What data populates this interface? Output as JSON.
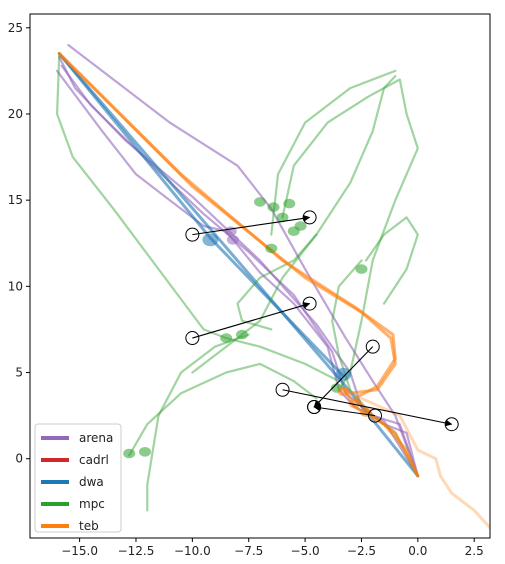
{
  "chart_data": {
    "type": "line",
    "title": "",
    "xlabel": "",
    "ylabel": "",
    "xlim": [
      -17.2,
      3.2
    ],
    "ylim": [
      -4.6,
      25.8
    ],
    "x_ticks": [
      -15.0,
      -12.5,
      -10.0,
      -7.5,
      -5.0,
      -2.5,
      0.0,
      2.5
    ],
    "x_tick_labels": [
      "−15.0",
      "−12.5",
      "−10.0",
      "−7.5",
      "−5.0",
      "−2.5",
      "0.0",
      "2.5"
    ],
    "y_ticks": [
      0,
      5,
      10,
      15,
      20,
      25
    ],
    "y_tick_labels": [
      "0",
      "5",
      "10",
      "15",
      "20",
      "25"
    ],
    "grid": false,
    "legend_position": "lower-left",
    "series": [
      {
        "name": "arena",
        "color": "#9467bd",
        "paths": [
          [
            [
              -15.9,
              23.3
            ],
            [
              -15.2,
              21.5
            ],
            [
              -13.0,
              18.5
            ],
            [
              -10.0,
              15.2
            ],
            [
              -7.0,
              11.5
            ],
            [
              -4.5,
              7.8
            ],
            [
              -3.0,
              5.0
            ],
            [
              -2.5,
              3.0
            ],
            [
              -1.5,
              2.0
            ],
            [
              -0.5,
              1.5
            ],
            [
              0.0,
              -1.0
            ]
          ],
          [
            [
              -15.8,
              22.8
            ],
            [
              -14.5,
              20.5
            ],
            [
              -12.0,
              17.3
            ],
            [
              -9.5,
              14.2
            ],
            [
              -7.5,
              12.0
            ],
            [
              -5.5,
              9.5
            ],
            [
              -3.8,
              6.2
            ],
            [
              -3.2,
              3.8
            ],
            [
              -2.0,
              2.5
            ],
            [
              -0.8,
              2.0
            ],
            [
              0.0,
              -1.0
            ]
          ],
          [
            [
              -15.5,
              24.0
            ],
            [
              -13.5,
              22.0
            ],
            [
              -11.0,
              19.5
            ],
            [
              -8.0,
              17.0
            ],
            [
              -6.5,
              14.5
            ],
            [
              -5.0,
              11.0
            ],
            [
              -3.2,
              7.0
            ],
            [
              -2.0,
              4.5
            ],
            [
              -1.0,
              2.5
            ],
            [
              0.0,
              -1.0
            ]
          ],
          [
            [
              -16.0,
              22.5
            ],
            [
              -14.0,
              19.0
            ],
            [
              -12.5,
              16.5
            ],
            [
              -11.0,
              15.0
            ],
            [
              -9.5,
              13.5
            ],
            [
              -8.5,
              13.2
            ],
            [
              -7.0,
              10.8
            ],
            [
              -5.5,
              9.0
            ],
            [
              -4.0,
              6.5
            ],
            [
              -3.5,
              4.0
            ],
            [
              -2.8,
              3.0
            ],
            [
              -1.5,
              2.2
            ],
            [
              0.0,
              -1.0
            ]
          ]
        ],
        "blobs": [
          [
            -8.3,
            13.2
          ],
          [
            -8.2,
            12.7
          ]
        ]
      },
      {
        "name": "cadrl",
        "color": "#d62728",
        "paths": [],
        "blobs": []
      },
      {
        "name": "dwa",
        "color": "#1f77b4",
        "paths": [
          [
            [
              -15.9,
              23.5
            ],
            [
              -9.2,
              12.8
            ],
            [
              -3.3,
              4.8
            ]
          ],
          [
            [
              -15.9,
              23.5
            ],
            [
              -3.2,
              4.2
            ],
            [
              0.0,
              -1.0
            ]
          ]
        ],
        "blobs": [
          [
            -9.2,
            12.7
          ],
          [
            -3.3,
            4.9
          ]
        ]
      },
      {
        "name": "mpc",
        "color": "#2ca02c",
        "paths": [
          [
            [
              -15.9,
              23.5
            ],
            [
              -16.0,
              20.0
            ],
            [
              -15.3,
              17.5
            ],
            [
              -13.5,
              14.5
            ],
            [
              -11.5,
              11.0
            ],
            [
              -9.5,
              7.5
            ],
            [
              -8.5,
              7.0
            ],
            [
              -7.0,
              6.5
            ],
            [
              -5.0,
              5.5
            ],
            [
              -3.5,
              4.5
            ]
          ],
          [
            [
              -12.0,
              -3.0
            ],
            [
              -12.0,
              -1.5
            ],
            [
              -11.5,
              2.5
            ],
            [
              -10.5,
              5.0
            ],
            [
              -9.0,
              6.5
            ],
            [
              -7.5,
              7.2
            ]
          ],
          [
            [
              -10.0,
              5.0
            ],
            [
              -8.5,
              6.5
            ],
            [
              -7.0,
              8.0
            ],
            [
              -6.0,
              10.5
            ],
            [
              -4.5,
              13.0
            ],
            [
              -3.0,
              16.0
            ],
            [
              -2.0,
              19.0
            ],
            [
              -1.5,
              21.5
            ],
            [
              -1.0,
              22.2
            ]
          ],
          [
            [
              -12.8,
              0.2
            ],
            [
              -12.0,
              2.0
            ],
            [
              -10.5,
              3.8
            ],
            [
              -8.5,
              5.0
            ],
            [
              -7.0,
              5.5
            ],
            [
              -5.5,
              4.5
            ],
            [
              -4.5,
              3.5
            ]
          ],
          [
            [
              -6.5,
              13.0
            ],
            [
              -6.2,
              16.5
            ],
            [
              -5.0,
              19.5
            ],
            [
              -3.0,
              21.5
            ],
            [
              -1.0,
              22.5
            ]
          ],
          [
            [
              -6.0,
              14.0
            ],
            [
              -5.5,
              17.0
            ],
            [
              -4.0,
              19.5
            ],
            [
              -2.2,
              21.0
            ],
            [
              -0.8,
              22.0
            ],
            [
              -0.5,
              20.0
            ],
            [
              0.0,
              18.0
            ],
            [
              -1.0,
              15.0
            ],
            [
              -2.0,
              11.5
            ],
            [
              -2.5,
              8.0
            ],
            [
              -3.0,
              5.0
            ],
            [
              -3.5,
              4.0
            ]
          ],
          [
            [
              -4.5,
              13.0
            ],
            [
              -5.5,
              11.5
            ],
            [
              -7.0,
              10.5
            ],
            [
              -8.0,
              9.0
            ],
            [
              -7.8,
              8.0
            ],
            [
              -6.5,
              7.5
            ]
          ],
          [
            [
              -2.5,
              11.5
            ],
            [
              -3.5,
              10.0
            ],
            [
              -3.8,
              8.0
            ],
            [
              -3.5,
              6.0
            ],
            [
              -3.0,
              4.0
            ],
            [
              -2.0,
              2.5
            ],
            [
              -1.0,
              1.5
            ],
            [
              0.0,
              -1.0
            ]
          ],
          [
            [
              -2.3,
              11.5
            ],
            [
              -1.5,
              13.0
            ],
            [
              -0.5,
              14.0
            ],
            [
              0.0,
              13.0
            ],
            [
              -0.5,
              11.0
            ],
            [
              -1.5,
              9.0
            ]
          ]
        ],
        "blobs": [
          [
            -8.5,
            7.0
          ],
          [
            -7.8,
            7.2
          ],
          [
            -12.8,
            0.3
          ],
          [
            -12.1,
            0.4
          ],
          [
            -6.5,
            12.2
          ],
          [
            -2.5,
            11.0
          ],
          [
            -6.0,
            14.0
          ],
          [
            -5.5,
            13.2
          ],
          [
            -5.2,
            13.5
          ],
          [
            -7.0,
            14.9
          ],
          [
            -6.4,
            14.6
          ],
          [
            -5.7,
            14.8
          ],
          [
            -3.6,
            4.1
          ]
        ]
      },
      {
        "name": "teb",
        "color": "#ff7f0e",
        "paths": [
          [
            [
              -15.9,
              23.5
            ],
            [
              -10.0,
              15.8
            ],
            [
              -5.0,
              10.5
            ],
            [
              -2.5,
              8.5
            ],
            [
              -1.2,
              7.0
            ],
            [
              -1.0,
              5.5
            ],
            [
              -1.8,
              4.0
            ],
            [
              -3.0,
              3.8
            ],
            [
              -3.3,
              4.1
            ],
            [
              -2.8,
              3.0
            ],
            [
              -1.5,
              2.0
            ],
            [
              -0.5,
              0.5
            ],
            [
              0.0,
              -1.0
            ]
          ],
          [
            [
              -15.9,
              23.5
            ],
            [
              -10.5,
              16.5
            ],
            [
              -6.0,
              11.5
            ],
            [
              -2.8,
              8.8
            ],
            [
              -1.1,
              7.2
            ],
            [
              -1.0,
              5.8
            ],
            [
              -1.8,
              4.2
            ],
            [
              -2.8,
              3.5
            ],
            [
              -2.0,
              2.5
            ],
            [
              -1.0,
              1.5
            ],
            [
              0.0,
              -1.0
            ]
          ],
          [
            [
              -2.5,
              3.5
            ],
            [
              -0.8,
              2.5
            ],
            [
              0.0,
              0.5
            ],
            [
              0.8,
              0.0
            ],
            [
              1.0,
              -1.0
            ],
            [
              1.5,
              -2.0
            ],
            [
              2.5,
              -3.0
            ],
            [
              3.2,
              -4.0
            ]
          ]
        ],
        "blobs": [
          [
            -3.3,
            3.9
          ],
          [
            -2.8,
            3.2
          ],
          [
            -2.3,
            2.7
          ]
        ]
      }
    ],
    "obstacles": [
      {
        "start": [
          -10.0,
          13.0
        ],
        "end": [
          -4.8,
          14.0
        ]
      },
      {
        "start": [
          -10.0,
          7.0
        ],
        "end": [
          -4.8,
          9.0
        ]
      },
      {
        "start": [
          -2.0,
          6.5
        ],
        "end": [
          -4.6,
          3.0
        ]
      },
      {
        "start": [
          -6.0,
          4.0
        ],
        "end": [
          1.5,
          2.0
        ]
      },
      {
        "start": [
          -1.9,
          2.5
        ],
        "end": [
          -4.6,
          3.0
        ]
      }
    ]
  }
}
